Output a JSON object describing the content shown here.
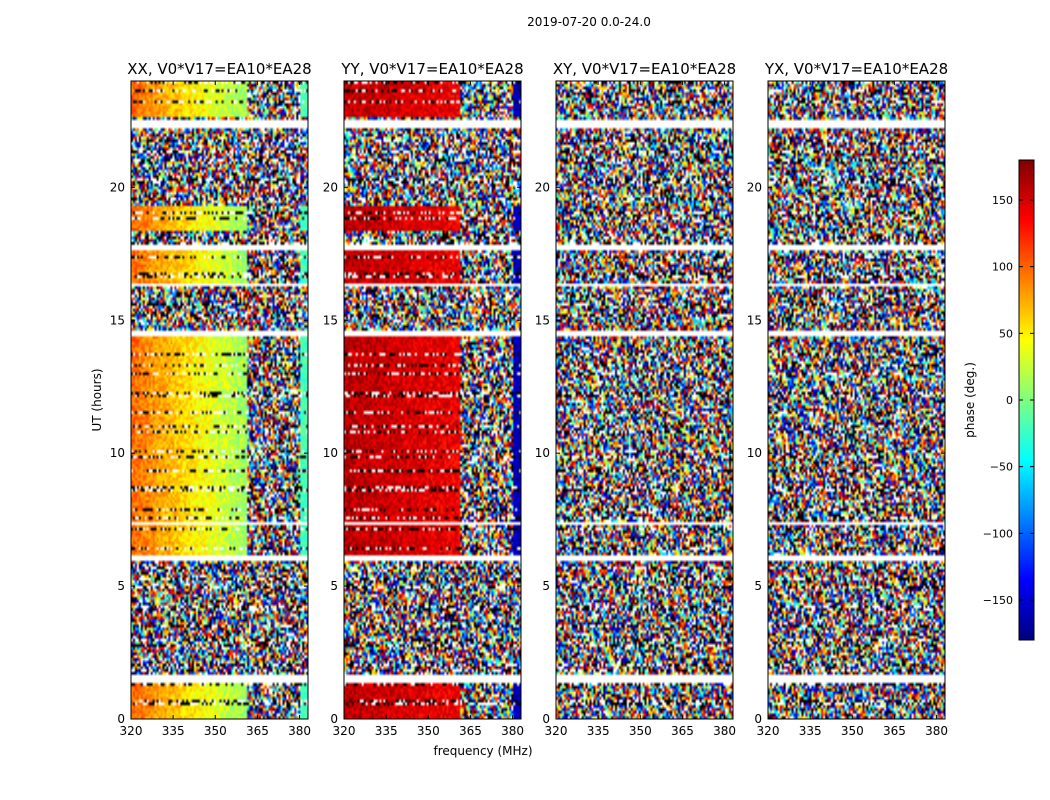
{
  "figure_title": "2019-07-20 0.0-24.0",
  "chart_data": [
    {
      "type": "heatmap",
      "title": "XX, V0*V17=EA10*EA28",
      "pol": "XX",
      "xlabel": "frequency (MHz)",
      "ylabel": "UT (hours)",
      "xlim": [
        320,
        383
      ],
      "ylim": [
        0,
        24
      ],
      "xticks": [
        320,
        335,
        350,
        365,
        380
      ],
      "yticks": [
        0,
        5,
        10,
        15,
        20
      ],
      "value_label": "phase (deg.)",
      "smooth_band_mhz": [
        320,
        361
      ],
      "smooth_phase_deg": [
        100,
        10
      ],
      "edge_band_mhz": [
        380,
        383
      ],
      "edge_phase_deg": -20
    },
    {
      "type": "heatmap",
      "title": "YY, V0*V17=EA10*EA28",
      "pol": "YY",
      "xlabel": "frequency (MHz)",
      "ylabel": "",
      "xlim": [
        320,
        383
      ],
      "ylim": [
        0,
        24
      ],
      "xticks": [
        320,
        335,
        350,
        365,
        380
      ],
      "yticks": [
        0,
        5,
        10,
        15,
        20
      ],
      "value_label": "phase (deg.)",
      "smooth_band_mhz": [
        320,
        361
      ],
      "smooth_phase_deg": [
        160,
        140
      ],
      "edge_band_mhz": [
        380,
        383
      ],
      "edge_phase_deg": -160
    },
    {
      "type": "heatmap",
      "title": "XY, V0*V17=EA10*EA28",
      "pol": "XY",
      "xlabel": "",
      "ylabel": "",
      "xlim": [
        320,
        383
      ],
      "ylim": [
        0,
        24
      ],
      "xticks": [
        320,
        335,
        350,
        365,
        380
      ],
      "yticks": [
        0,
        5,
        10,
        15,
        20
      ],
      "value_label": "phase (deg.)",
      "smooth_band_mhz": null,
      "smooth_phase_deg": null,
      "edge_band_mhz": null,
      "edge_phase_deg": null
    },
    {
      "type": "heatmap",
      "title": "YX, V0*V17=EA10*EA28",
      "pol": "YX",
      "xlabel": "",
      "ylabel": "",
      "xlim": [
        320,
        383
      ],
      "ylim": [
        0,
        24
      ],
      "xticks": [
        320,
        335,
        350,
        365,
        380
      ],
      "yticks": [
        0,
        5,
        10,
        15,
        20
      ],
      "value_label": "phase (deg.)",
      "smooth_band_mhz": null,
      "smooth_phase_deg": null,
      "edge_band_mhz": null,
      "edge_phase_deg": null
    }
  ],
  "colorbar": {
    "label": "phase (deg.)",
    "range": [
      -180,
      180
    ],
    "ticks": [
      -150,
      -100,
      -50,
      0,
      50,
      100,
      150
    ],
    "tick_labels": [
      "−150",
      "−100",
      "−50",
      "0",
      "50",
      "100",
      "150"
    ],
    "colormap": "jet",
    "colors": [
      "#00007f",
      "#0000ff",
      "#007fff",
      "#00ffff",
      "#7fff7f",
      "#ffff00",
      "#ff7f00",
      "#ff0000",
      "#7f0000"
    ]
  },
  "flagged_ut_ranges": [
    [
      1.4,
      1.7
    ],
    [
      6.0,
      6.2
    ],
    [
      7.3,
      7.45
    ],
    [
      14.45,
      14.6
    ],
    [
      16.3,
      16.4
    ],
    [
      17.6,
      17.8
    ],
    [
      22.2,
      22.5
    ]
  ]
}
